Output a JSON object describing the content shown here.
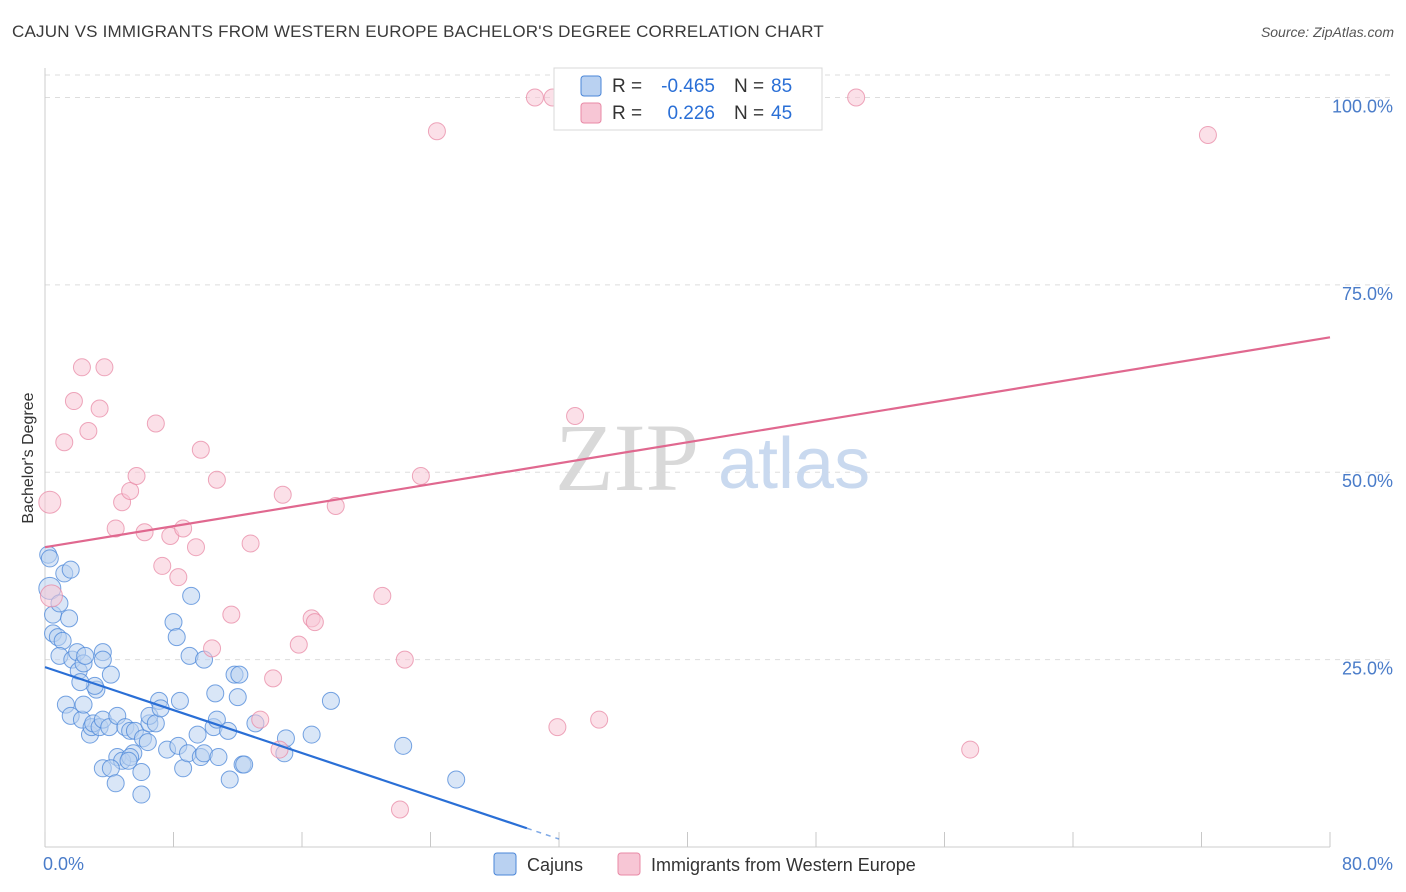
{
  "title": "CAJUN VS IMMIGRANTS FROM WESTERN EUROPE BACHELOR'S DEGREE CORRELATION CHART",
  "source": "Source: ZipAtlas.com",
  "watermark": {
    "zip": "ZIP",
    "atlas": "atlas"
  },
  "colors": {
    "cajuns": "#4a86d8",
    "cajuns_fill": "#b9d1f1",
    "cajuns_line": "#2a6fd6",
    "immigrants": "#e889a6",
    "immigrants_fill": "#f7c6d5",
    "immigrants_line": "#e0688f",
    "tick": "#4a7cc9",
    "grid": "#dddddd"
  },
  "stats": {
    "r_label": "R =",
    "n_label": "N =",
    "cajuns": {
      "r": "-0.465",
      "n": "85"
    },
    "immigrants": {
      "r": "0.226",
      "n": "45"
    }
  },
  "chart_data": {
    "type": "scatter",
    "title": "CAJUN VS IMMIGRANTS FROM WESTERN EUROPE BACHELOR'S DEGREE CORRELATION CHART",
    "xlabel": "",
    "ylabel": "Bachelor's Degree",
    "xlim": [
      0,
      80
    ],
    "ylim": [
      0,
      103
    ],
    "x_tick_labels": [
      "0.0%",
      "80.0%"
    ],
    "y_ticks": [
      25,
      50,
      75,
      100
    ],
    "y_tick_labels": [
      "25.0%",
      "50.0%",
      "75.0%",
      "100.0%"
    ],
    "legend": [
      "Cajuns",
      "Immigrants from Western Europe"
    ],
    "series": [
      {
        "name": "Cajuns",
        "trend": {
          "x": [
            0,
            30
          ],
          "y": [
            24,
            2.5
          ],
          "dash_to": 32
        },
        "points": [
          [
            0.2,
            39
          ],
          [
            0.3,
            38.5
          ],
          [
            0.3,
            34.5
          ],
          [
            0.5,
            31
          ],
          [
            0.5,
            28.5
          ],
          [
            0.9,
            32.5
          ],
          [
            1.2,
            36.5
          ],
          [
            1.6,
            37
          ],
          [
            0.8,
            28
          ],
          [
            1.1,
            27.5
          ],
          [
            1.5,
            30.5
          ],
          [
            0.9,
            25.5
          ],
          [
            1.7,
            25
          ],
          [
            2.1,
            23.5
          ],
          [
            2.0,
            26
          ],
          [
            2.4,
            24.5
          ],
          [
            2.5,
            25.5
          ],
          [
            3.6,
            26
          ],
          [
            1.3,
            19
          ],
          [
            1.6,
            17.5
          ],
          [
            2.3,
            17
          ],
          [
            2.4,
            19
          ],
          [
            3.2,
            21
          ],
          [
            3.1,
            21.5
          ],
          [
            2.8,
            15
          ],
          [
            2.9,
            16
          ],
          [
            3.0,
            16.5
          ],
          [
            3.4,
            16
          ],
          [
            3.6,
            17
          ],
          [
            4.0,
            16
          ],
          [
            4.1,
            23
          ],
          [
            4.5,
            17.5
          ],
          [
            5.0,
            16
          ],
          [
            5.3,
            15.5
          ],
          [
            5.5,
            12.5
          ],
          [
            4.5,
            12
          ],
          [
            4.8,
            11.5
          ],
          [
            5.3,
            12
          ],
          [
            5.2,
            11.5
          ],
          [
            3.6,
            10.5
          ],
          [
            4.1,
            10.5
          ],
          [
            4.4,
            8.5
          ],
          [
            6.0,
            10
          ],
          [
            6.0,
            7
          ],
          [
            5.6,
            15.5
          ],
          [
            6.1,
            14.5
          ],
          [
            6.4,
            14
          ],
          [
            6.5,
            16.5
          ],
          [
            6.5,
            17.5
          ],
          [
            6.9,
            16.5
          ],
          [
            7.1,
            19.5
          ],
          [
            7.2,
            18.5
          ],
          [
            7.6,
            13
          ],
          [
            8.3,
            13.5
          ],
          [
            8.4,
            19.5
          ],
          [
            8.6,
            10.5
          ],
          [
            8.9,
            12.5
          ],
          [
            9.5,
            15
          ],
          [
            9.7,
            12
          ],
          [
            9.9,
            12.5
          ],
          [
            8.0,
            30
          ],
          [
            8.2,
            28
          ],
          [
            9.0,
            25.5
          ],
          [
            9.9,
            25
          ],
          [
            9.1,
            33.5
          ],
          [
            10.5,
            16
          ],
          [
            10.6,
            20.5
          ],
          [
            10.7,
            17
          ],
          [
            10.8,
            12
          ],
          [
            11.4,
            15.5
          ],
          [
            11.5,
            9
          ],
          [
            11.8,
            23
          ],
          [
            12.0,
            20
          ],
          [
            12.1,
            23
          ],
          [
            12.3,
            11
          ],
          [
            12.4,
            11
          ],
          [
            13.1,
            16.5
          ],
          [
            14.9,
            12.5
          ],
          [
            15.0,
            14.5
          ],
          [
            16.6,
            15
          ],
          [
            17.8,
            19.5
          ],
          [
            22.3,
            13.5
          ],
          [
            25.6,
            9
          ],
          [
            3.6,
            25
          ],
          [
            2.2,
            22
          ]
        ]
      },
      {
        "name": "Immigrants from Western Europe",
        "trend": {
          "x": [
            0,
            80
          ],
          "y": [
            40,
            68
          ]
        },
        "points": [
          [
            0.3,
            46
          ],
          [
            0.4,
            33.5
          ],
          [
            1.2,
            54
          ],
          [
            1.8,
            59.5
          ],
          [
            2.3,
            64
          ],
          [
            2.7,
            55.5
          ],
          [
            3.4,
            58.5
          ],
          [
            3.7,
            64
          ],
          [
            4.4,
            42.5
          ],
          [
            4.8,
            46
          ],
          [
            5.3,
            47.5
          ],
          [
            5.7,
            49.5
          ],
          [
            6.2,
            42
          ],
          [
            6.9,
            56.5
          ],
          [
            7.3,
            37.5
          ],
          [
            7.8,
            41.5
          ],
          [
            8.3,
            36
          ],
          [
            8.6,
            42.5
          ],
          [
            9.4,
            40
          ],
          [
            9.7,
            53
          ],
          [
            10.4,
            26.5
          ],
          [
            10.7,
            49
          ],
          [
            11.6,
            31
          ],
          [
            12.8,
            40.5
          ],
          [
            13.4,
            17
          ],
          [
            14.2,
            22.5
          ],
          [
            14.8,
            47
          ],
          [
            14.6,
            13
          ],
          [
            15.8,
            27
          ],
          [
            16.6,
            30.5
          ],
          [
            16.8,
            30
          ],
          [
            18.1,
            45.5
          ],
          [
            21.0,
            33.5
          ],
          [
            22.1,
            5
          ],
          [
            22.4,
            25
          ],
          [
            23.4,
            49.5
          ],
          [
            24.4,
            95.5
          ],
          [
            30.5,
            100
          ],
          [
            31.6,
            100
          ],
          [
            31.9,
            16
          ],
          [
            33.0,
            57.5
          ],
          [
            34.5,
            17
          ],
          [
            50.5,
            100
          ],
          [
            57.6,
            13
          ],
          [
            72.4,
            95
          ]
        ]
      }
    ]
  }
}
